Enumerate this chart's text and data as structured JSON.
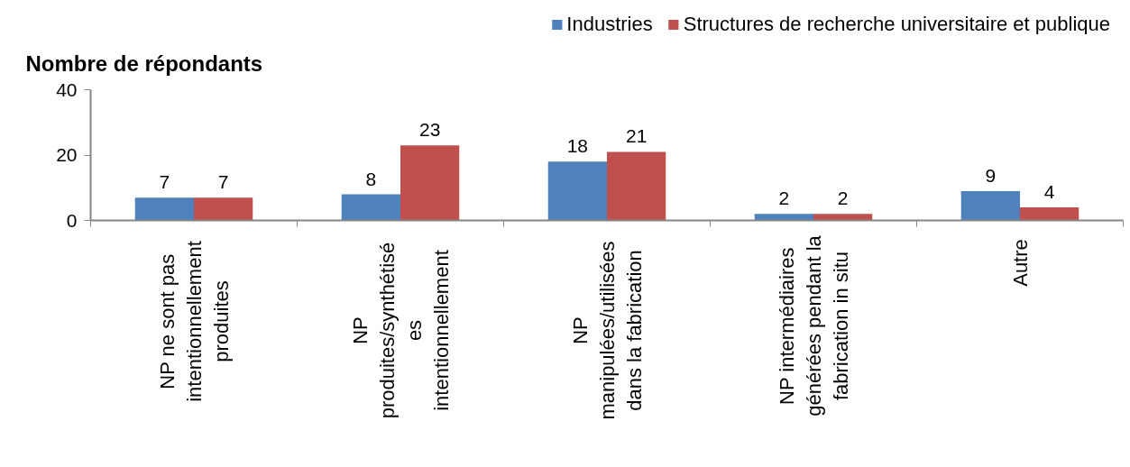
{
  "chart_data": {
    "type": "bar",
    "ylabel": "Nombre de répondants",
    "categories": [
      "NP ne sont pas intentionnellement produites",
      "NP produites/synthétisées intentionnellement",
      "NP manipulées/utilisées dans la fabrication",
      "NP intermédiaires générées pendant la fabrication in situ",
      "Autre"
    ],
    "series": [
      {
        "name": "Industries",
        "color": "#4f81bd",
        "values": [
          7,
          8,
          18,
          2,
          9
        ]
      },
      {
        "name": "Structures de recherche universitaire et publique",
        "color": "#c0504d",
        "values": [
          7,
          23,
          21,
          2,
          4
        ]
      }
    ],
    "ylim": [
      0,
      40
    ],
    "yticks": [
      0,
      20,
      40
    ],
    "legend": "top right",
    "data_labels": true
  }
}
